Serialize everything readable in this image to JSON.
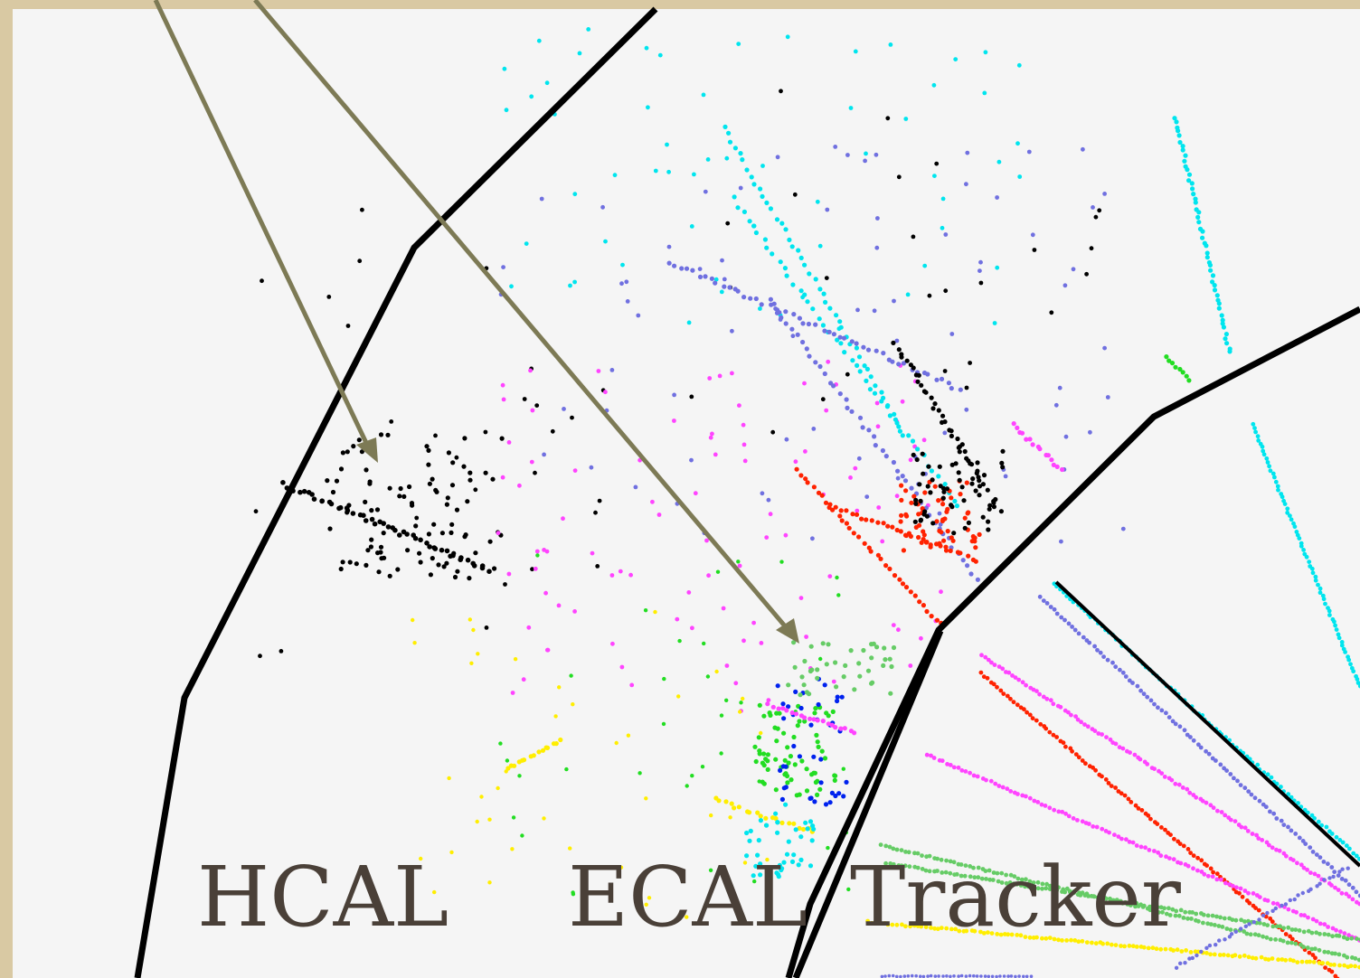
{
  "labels": {
    "hcal": "HCAL",
    "ecal": "ECAL",
    "tracker": "Tracker"
  },
  "colors": {
    "background": "#d9c9a3",
    "panel": "#f5f5f5",
    "boundary": "#000000",
    "arrow": "#7d7a55",
    "label": "#4a4038",
    "hits": [
      "#00e5ee",
      "#7070e0",
      "#ff44ff",
      "#ff2200",
      "#000000",
      "#ffee00",
      "#22dd22",
      "#66cc66",
      "#0022ee"
    ]
  }
}
